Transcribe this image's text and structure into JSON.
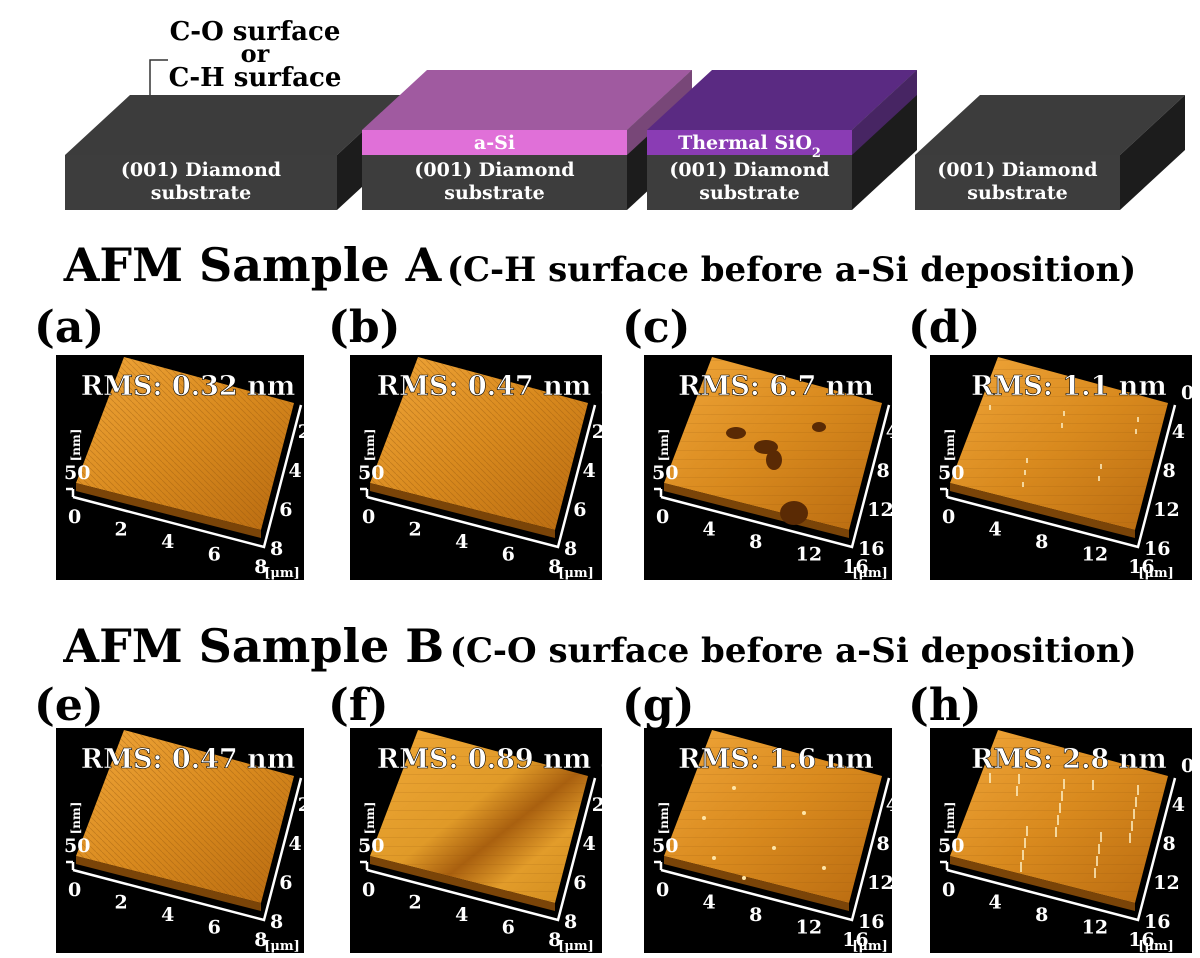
{
  "diagram": {
    "surface_note": [
      "C-O surface",
      "or",
      "C-H surface"
    ],
    "blocks": [
      {
        "layer_label": "",
        "layer_sub": "",
        "layer_suffix": "",
        "substrate_line1": "(001) Diamond",
        "substrate_line2": "substrate",
        "layer_color": "",
        "top_color": "#3c3c3c"
      },
      {
        "layer_label": "a-Si",
        "layer_sub": "",
        "layer_suffix": "",
        "substrate_line1": "(001) Diamond",
        "substrate_line2": "substrate",
        "layer_color": "#e070d8",
        "top_color": "#a05aa0"
      },
      {
        "layer_label": "Thermal SiO",
        "layer_sub": "2",
        "layer_suffix": "",
        "substrate_line1": "(001) Diamond",
        "substrate_line2": "substrate",
        "layer_color": "#8a3cb4",
        "top_color": "#5a2a82"
      },
      {
        "layer_label": "",
        "layer_sub": "",
        "layer_suffix": "",
        "substrate_line1": "(001) Diamond",
        "substrate_line2": "substrate",
        "layer_color": "",
        "top_color": "#3c3c3c"
      }
    ]
  },
  "sample_a": {
    "title_main": "AFM Sample A",
    "title_detail": "(C-H surface before a-Si deposition)",
    "panels": [
      {
        "label": "(a)",
        "rms": "RMS:  0.32 nm",
        "x_ticks": [
          "0",
          "2",
          "4",
          "6",
          "8"
        ],
        "y_ticks": [
          "0",
          "2",
          "4",
          "6",
          "8"
        ],
        "z_label": "[nm]",
        "z_tick": "50",
        "unit": "[μm]",
        "defects": "none"
      },
      {
        "label": "(b)",
        "rms": "RMS:  0.47 nm",
        "x_ticks": [
          "0",
          "2",
          "4",
          "6",
          "8"
        ],
        "y_ticks": [
          "0",
          "2",
          "4",
          "6",
          "8"
        ],
        "z_label": "[nm]",
        "z_tick": "50",
        "unit": "[μm]",
        "defects": "none"
      },
      {
        "label": "(c)",
        "rms": "RMS:  6.7 nm",
        "x_ticks": [
          "0",
          "4",
          "8",
          "12",
          "16"
        ],
        "y_ticks": [
          "0",
          "4",
          "8",
          "12",
          "16"
        ],
        "z_label": "[nm]",
        "z_tick": "50",
        "unit": "[μm]",
        "defects": "pits"
      },
      {
        "label": "(d)",
        "rms": "RMS:  1.1 nm",
        "x_ticks": [
          "0",
          "4",
          "8",
          "12",
          "16"
        ],
        "y_ticks": [
          "0",
          "4",
          "8",
          "12",
          "16"
        ],
        "z_label": "[nm]",
        "z_tick": "50",
        "unit": "[μm]",
        "defects": "streaks"
      }
    ]
  },
  "sample_b": {
    "title_main": "AFM Sample B",
    "title_detail": "(C-O surface before a-Si deposition)",
    "panels": [
      {
        "label": "(e)",
        "rms": "RMS:  0.47 nm",
        "x_ticks": [
          "0",
          "2",
          "4",
          "6",
          "8"
        ],
        "y_ticks": [
          "0",
          "2",
          "4",
          "6",
          "8"
        ],
        "z_label": "[nm]",
        "z_tick": "50",
        "unit": "[μm]",
        "defects": "none"
      },
      {
        "label": "(f)",
        "rms": "RMS:  0.89 nm",
        "x_ticks": [
          "0",
          "2",
          "4",
          "6",
          "8"
        ],
        "y_ticks": [
          "0",
          "2",
          "4",
          "6",
          "8"
        ],
        "z_label": "[nm]",
        "z_tick": "50",
        "unit": "[μm]",
        "defects": "band"
      },
      {
        "label": "(g)",
        "rms": "RMS:  1.6 nm",
        "x_ticks": [
          "0",
          "4",
          "8",
          "12",
          "16"
        ],
        "y_ticks": [
          "0",
          "4",
          "8",
          "12",
          "16"
        ],
        "z_label": "[nm]",
        "z_tick": "50",
        "unit": "[μm]",
        "defects": "dots"
      },
      {
        "label": "(h)",
        "rms": "RMS:  2.8 nm",
        "x_ticks": [
          "0",
          "4",
          "8",
          "12",
          "16"
        ],
        "y_ticks": [
          "0",
          "4",
          "8",
          "12",
          "16"
        ],
        "z_label": "[nm]",
        "z_tick": "50",
        "unit": "[μm]",
        "defects": "spikes"
      }
    ]
  }
}
